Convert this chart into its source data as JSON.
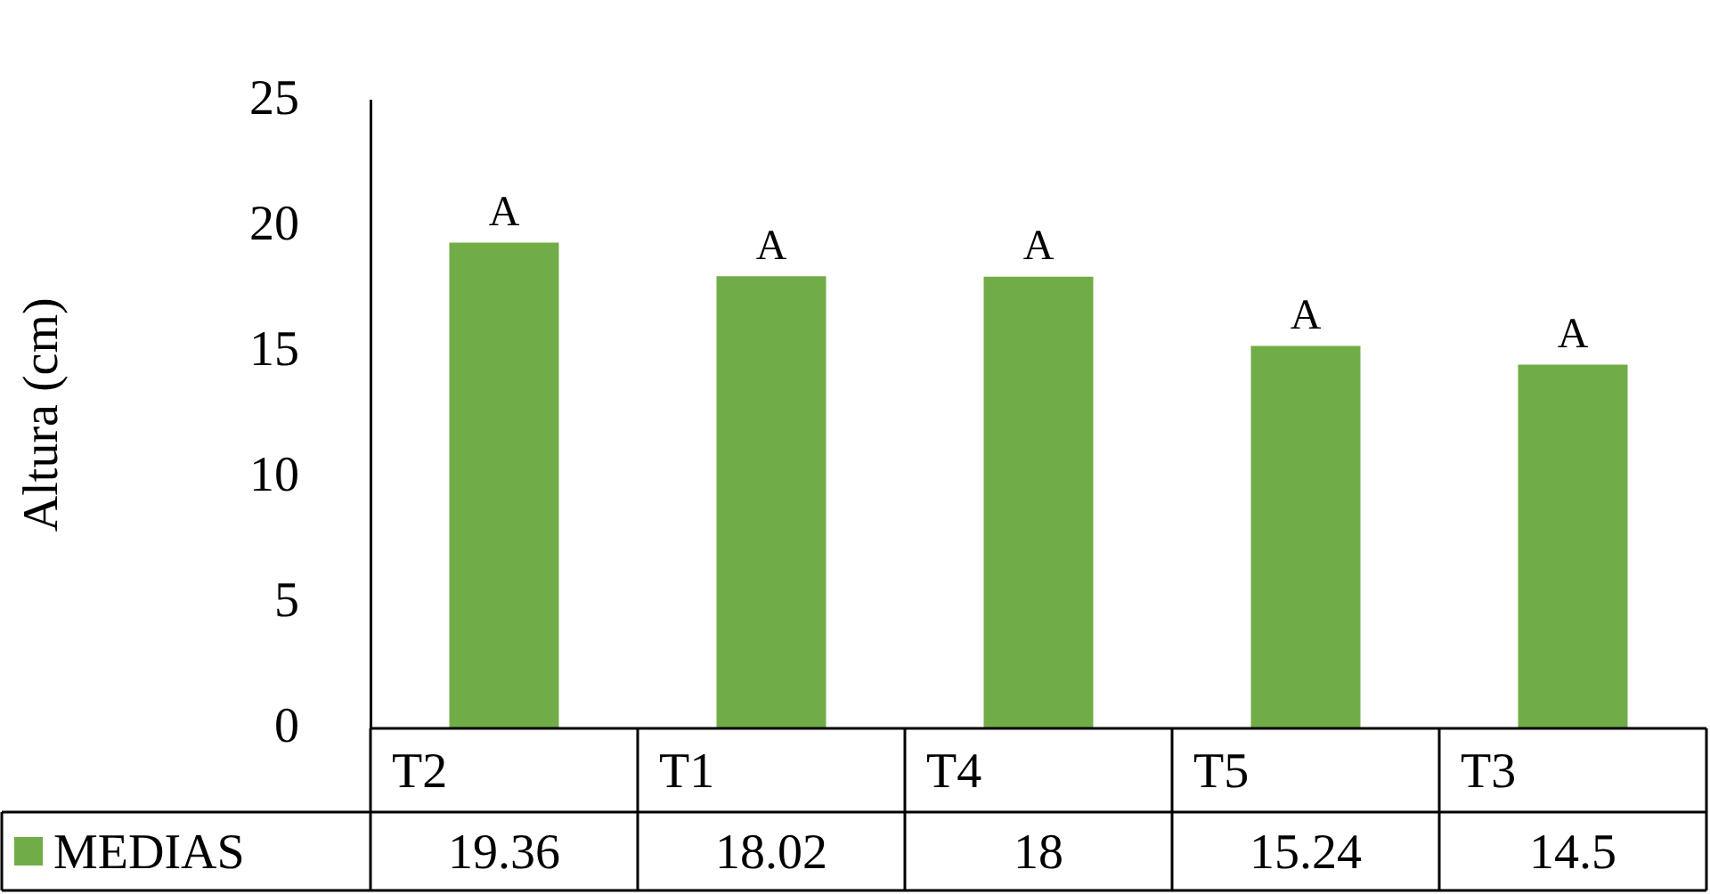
{
  "chart_data": {
    "type": "bar",
    "ylabel": "Altura (cm)",
    "categories": [
      "T2",
      "T1",
      "T4",
      "T5",
      "T3"
    ],
    "series": [
      {
        "name": "MEDIAS",
        "color": "#70ad47",
        "values": [
          19.36,
          18.02,
          18,
          15.24,
          14.5
        ]
      }
    ],
    "ylim": [
      0,
      25
    ],
    "yticks": [
      0,
      5,
      10,
      15,
      20,
      25
    ],
    "grid": false,
    "legend": "bottom",
    "data_labels": true,
    "annotations": [
      "A",
      "A",
      "A",
      "A",
      "A"
    ]
  }
}
